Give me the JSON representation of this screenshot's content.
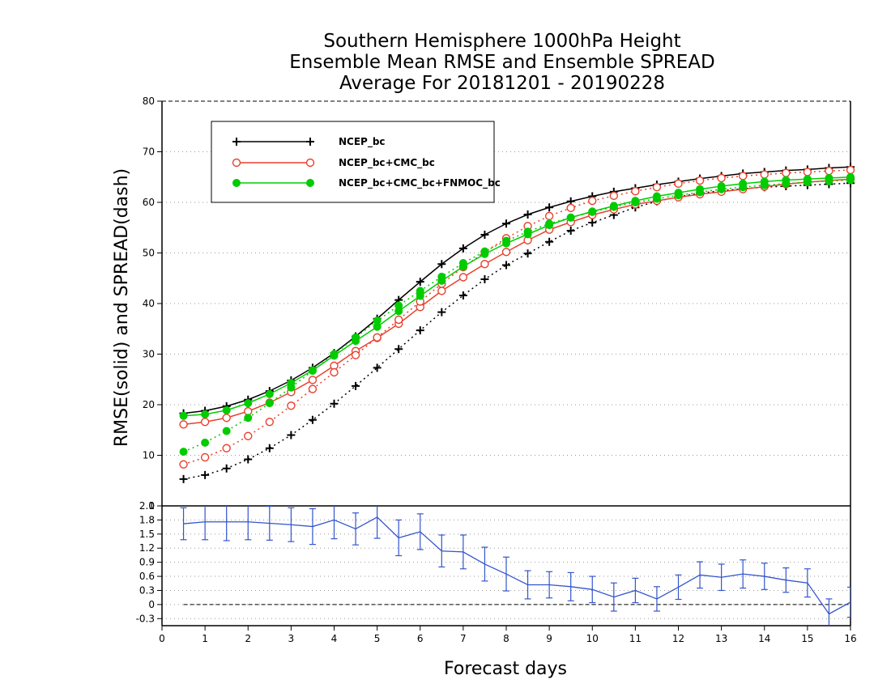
{
  "chart_data": [
    {
      "type": "line",
      "title": [
        "Southern Hemisphere 1000hPa Height",
        "Ensemble Mean RMSE and Ensemble SPREAD",
        "Average For 20181201 - 20190228"
      ],
      "ylabel": "RMSE(solid) and SPREAD(dash)",
      "xlim": [
        0,
        16
      ],
      "ylim": [
        0,
        80
      ],
      "yticks": [
        0,
        10,
        20,
        30,
        40,
        50,
        60,
        70,
        80
      ],
      "grid": true,
      "legend_position": "top-left",
      "x": [
        0.5,
        1,
        1.5,
        2,
        2.5,
        3,
        3.5,
        4,
        4.5,
        5,
        5.5,
        6,
        6.5,
        7,
        7.5,
        8,
        8.5,
        9,
        9.5,
        10,
        10.5,
        11,
        11.5,
        12,
        12.5,
        13,
        13.5,
        14,
        14.5,
        15,
        15.5,
        16
      ],
      "series": [
        {
          "name": "NCEP_bc",
          "color": "#000000",
          "marker": "plus",
          "style": "solid",
          "values": [
            18.3,
            18.8,
            19.7,
            21.0,
            22.7,
            24.8,
            27.3,
            30.2,
            33.5,
            37.0,
            40.7,
            44.3,
            47.8,
            50.9,
            53.6,
            55.8,
            57.6,
            59.0,
            60.2,
            61.2,
            62.1,
            62.8,
            63.5,
            64.1,
            64.7,
            65.2,
            65.7,
            66.0,
            66.3,
            66.5,
            66.8,
            67.0
          ]
        },
        {
          "name": "NCEP_bc",
          "color": "#000000",
          "marker": "plus",
          "style": "dash",
          "values": [
            5.3,
            6.1,
            7.4,
            9.2,
            11.4,
            14.0,
            17.0,
            20.2,
            23.7,
            27.3,
            31.0,
            34.7,
            38.3,
            41.6,
            44.8,
            47.6,
            49.9,
            52.2,
            54.4,
            56.0,
            57.5,
            59.0,
            60.2,
            61.1,
            61.8,
            62.3,
            62.7,
            63.0,
            63.2,
            63.4,
            63.6,
            63.8
          ]
        },
        {
          "name": "NCEP_bc+CMC_bc",
          "color": "#e8412f",
          "marker": "circle-open",
          "style": "solid",
          "values": [
            16.1,
            16.6,
            17.4,
            18.7,
            20.4,
            22.5,
            24.9,
            27.7,
            30.6,
            33.2,
            36.0,
            39.3,
            42.5,
            45.2,
            47.8,
            50.2,
            52.5,
            54.6,
            56.1,
            57.5,
            58.6,
            59.6,
            60.3,
            61.0,
            61.6,
            62.1,
            62.6,
            63.1,
            63.6,
            64.0,
            64.3,
            64.6
          ]
        },
        {
          "name": "NCEP_bc+CMC_bc",
          "color": "#e8412f",
          "marker": "circle-open",
          "style": "dash",
          "values": [
            8.2,
            9.6,
            11.4,
            13.8,
            16.6,
            19.8,
            23.1,
            26.4,
            29.8,
            33.3,
            36.8,
            40.4,
            43.9,
            47.2,
            50.2,
            52.9,
            55.3,
            57.3,
            58.9,
            60.3,
            61.3,
            62.2,
            63.0,
            63.7,
            64.3,
            64.8,
            65.2,
            65.5,
            65.8,
            66.0,
            66.2,
            66.4
          ]
        },
        {
          "name": "NCEP_bc+CMC_bc+FNMOC_bc",
          "color": "#00cc00",
          "marker": "circle-filled",
          "style": "solid",
          "values": [
            17.8,
            18.1,
            18.9,
            20.3,
            22.1,
            24.3,
            26.8,
            29.7,
            32.6,
            35.4,
            38.5,
            41.5,
            44.5,
            47.3,
            49.8,
            51.9,
            53.7,
            55.5,
            57.0,
            58.2,
            59.3,
            60.3,
            61.2,
            61.9,
            62.6,
            63.2,
            63.7,
            64.1,
            64.4,
            64.6,
            64.8,
            65.0
          ]
        },
        {
          "name": "NCEP_bc+CMC_bc+FNMOC_bc",
          "color": "#00cc00",
          "marker": "circle-filled",
          "style": "dash",
          "values": [
            10.7,
            12.5,
            14.8,
            17.4,
            20.3,
            23.4,
            26.7,
            30.0,
            33.3,
            36.6,
            39.6,
            42.5,
            45.3,
            48.0,
            50.3,
            52.4,
            54.2,
            55.8,
            57.0,
            58.1,
            59.1,
            60.0,
            60.7,
            61.4,
            62.0,
            62.6,
            63.0,
            63.4,
            63.7,
            64.0,
            64.2,
            64.4
          ]
        }
      ]
    },
    {
      "type": "line",
      "xlabel": "Forecast days",
      "xlim": [
        0,
        16
      ],
      "xticks": [
        0,
        1,
        2,
        3,
        4,
        5,
        6,
        7,
        8,
        9,
        10,
        11,
        12,
        13,
        14,
        15,
        16
      ],
      "ylim": [
        -0.45,
        2.1
      ],
      "yticks": [
        -0.3,
        0,
        0.3,
        0.6,
        0.9,
        1.2,
        1.5,
        1.8,
        2.1
      ],
      "grid": true,
      "zero_line": true,
      "series": [
        {
          "color": "#3355cc",
          "error_bars": true,
          "x": [
            0.5,
            1,
            1.5,
            2,
            2.5,
            3,
            3.5,
            4,
            4.5,
            5,
            5.5,
            6,
            6.5,
            7,
            7.5,
            8,
            8.5,
            9,
            9.5,
            10,
            10.5,
            11,
            11.5,
            12,
            12.5,
            13,
            13.5,
            14,
            14.5,
            15,
            15.5,
            16
          ],
          "values": [
            1.72,
            1.76,
            1.76,
            1.76,
            1.73,
            1.7,
            1.66,
            1.8,
            1.61,
            1.86,
            1.42,
            1.55,
            1.14,
            1.12,
            0.86,
            0.65,
            0.42,
            0.42,
            0.38,
            0.32,
            0.16,
            0.3,
            0.12,
            0.37,
            0.63,
            0.58,
            0.65,
            0.6,
            0.52,
            0.46,
            -0.2,
            0.05
          ],
          "error": [
            0.34,
            0.38,
            0.4,
            0.38,
            0.36,
            0.36,
            0.38,
            0.4,
            0.34,
            0.45,
            0.38,
            0.38,
            0.34,
            0.36,
            0.36,
            0.36,
            0.3,
            0.28,
            0.3,
            0.28,
            0.3,
            0.26,
            0.26,
            0.26,
            0.28,
            0.28,
            0.3,
            0.28,
            0.26,
            0.3,
            0.32,
            0.32
          ]
        }
      ]
    }
  ]
}
